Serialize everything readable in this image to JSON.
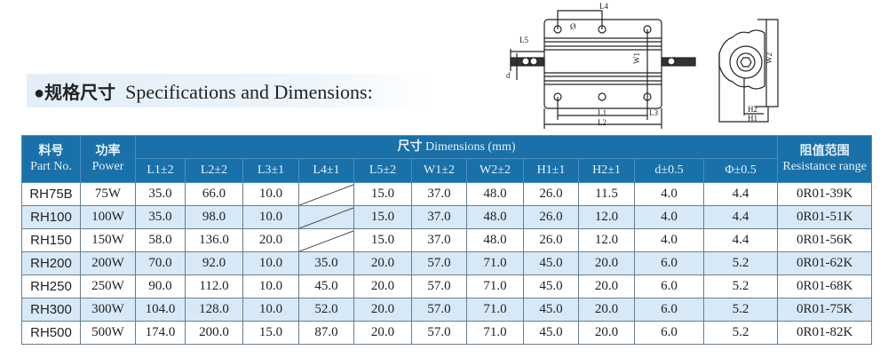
{
  "title": {
    "bullet": "●",
    "cn": "规格尺寸",
    "en": "Specifications and Dimensions:"
  },
  "diagram": {
    "labels": [
      "L4",
      "Ø",
      "L5",
      "d",
      "W1",
      "L1",
      "L2",
      "L3",
      "W2",
      "H2",
      "H1"
    ]
  },
  "table": {
    "part_no": {
      "cn": "料号",
      "en": "Part No."
    },
    "power": {
      "cn": "功率",
      "en": "Power"
    },
    "dimensions": {
      "cn": "尺寸",
      "en": "Dimensions (mm)"
    },
    "resistance": {
      "cn": "阻值范围",
      "en": "Resistance range"
    },
    "dim_cols": [
      "L1±2",
      "L2±2",
      "L3±1",
      "L4±1",
      "L5±2",
      "W1±2",
      "W2±2",
      "H1±1",
      "H2±1",
      "d±0.5",
      "Φ±0.5"
    ],
    "rows": [
      {
        "part": "RH75B",
        "power": "75W",
        "dims": [
          "35.0",
          "66.0",
          "10.0",
          "",
          "15.0",
          "37.0",
          "48.0",
          "26.0",
          "11.5",
          "4.0",
          "4.4"
        ],
        "range": "0R01-39K"
      },
      {
        "part": "RH100",
        "power": "100W",
        "dims": [
          "35.0",
          "98.0",
          "10.0",
          "",
          "15.0",
          "37.0",
          "48.0",
          "26.0",
          "12.0",
          "4.0",
          "4.4"
        ],
        "range": "0R01-51K"
      },
      {
        "part": "RH150",
        "power": "150W",
        "dims": [
          "58.0",
          "136.0",
          "20.0",
          "",
          "15.0",
          "37.0",
          "48.0",
          "26.0",
          "12.0",
          "4.0",
          "4.4"
        ],
        "range": "0R01-56K"
      },
      {
        "part": "RH200",
        "power": "200W",
        "dims": [
          "70.0",
          "92.0",
          "10.0",
          "35.0",
          "20.0",
          "57.0",
          "71.0",
          "45.0",
          "20.0",
          "6.0",
          "5.2"
        ],
        "range": "0R01-62K"
      },
      {
        "part": "RH250",
        "power": "250W",
        "dims": [
          "90.0",
          "112.0",
          "10.0",
          "45.0",
          "20.0",
          "57.0",
          "71.0",
          "45.0",
          "20.0",
          "6.0",
          "5.2"
        ],
        "range": "0R01-68K"
      },
      {
        "part": "RH300",
        "power": "300W",
        "dims": [
          "104.0",
          "128.0",
          "10.0",
          "52.0",
          "20.0",
          "57.0",
          "71.0",
          "45.0",
          "20.0",
          "6.0",
          "5.2"
        ],
        "range": "0R01-75K"
      },
      {
        "part": "RH500",
        "power": "500W",
        "dims": [
          "174.0",
          "200.0",
          "15.0",
          "87.0",
          "20.0",
          "57.0",
          "71.0",
          "45.0",
          "20.0",
          "6.0",
          "5.2"
        ],
        "range": "0R01-82K"
      }
    ]
  },
  "colors": {
    "header": "#1a70a9",
    "alt_row": "#d7e9f6"
  }
}
